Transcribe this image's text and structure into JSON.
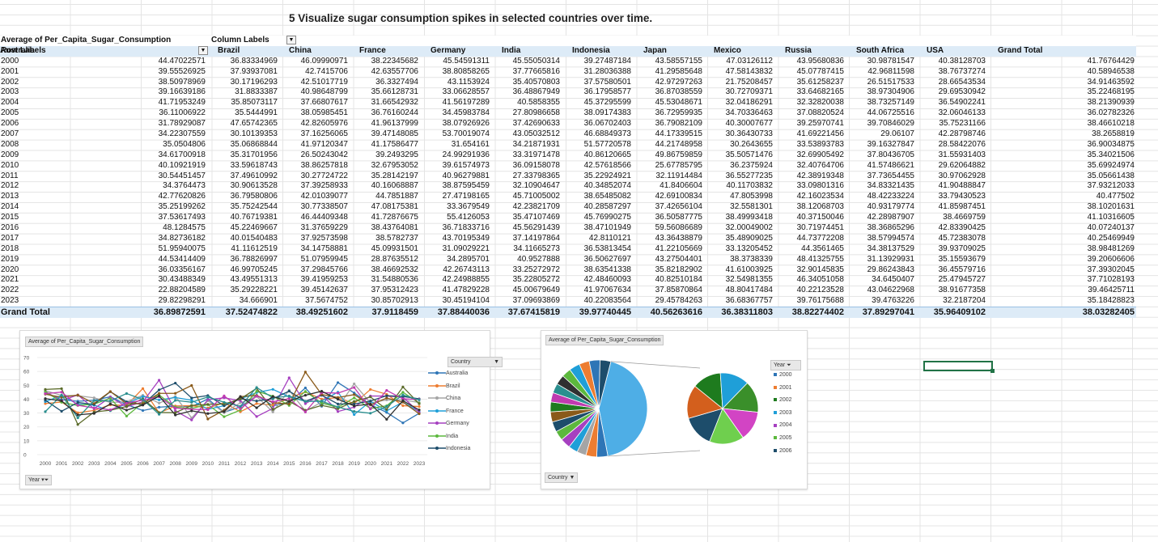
{
  "title": "5 Visualize sugar consumption spikes in selected countries over time.",
  "pivot": {
    "values_label": "Average of Per_Capita_Sugar_Consumption",
    "column_labels": "Column Labels",
    "row_labels": "Row Labels",
    "columns": [
      "Australia",
      "Brazil",
      "China",
      "France",
      "Germany",
      "India",
      "Indonesia",
      "Japan",
      "Mexico",
      "Russia",
      "South Africa",
      "USA",
      "Grand Total"
    ],
    "rows": [
      {
        "year": "2000",
        "values": [
          "44.47022571",
          "36.83334969",
          "46.09990971",
          "38.22345682",
          "45.54591311",
          "45.55050314",
          "39.27487184",
          "43.58557155",
          "47.03126112",
          "43.95680836",
          "30.98781547",
          "40.38128703",
          "41.76764429"
        ]
      },
      {
        "year": "2001",
        "values": [
          "39.55526925",
          "37.93937081",
          "42.7415706",
          "42.63557706",
          "38.80858265",
          "37.77665816",
          "31.28036388",
          "41.29585648",
          "47.58143832",
          "45.07787415",
          "42.96811598",
          "38.76737274",
          "40.58946538"
        ]
      },
      {
        "year": "2002",
        "values": [
          "38.50978969",
          "30.17196293",
          "42.51017719",
          "36.3327494",
          "43.1153924",
          "35.40570803",
          "37.57580501",
          "42.97297263",
          "21.75208457",
          "35.61258237",
          "26.51517533",
          "28.66543534",
          "34.91463592"
        ]
      },
      {
        "year": "2003",
        "values": [
          "39.16639186",
          "31.8833387",
          "40.98648799",
          "35.66128731",
          "33.06628557",
          "36.48867949",
          "36.17958577",
          "36.87038559",
          "30.72709371",
          "33.64682165",
          "38.97304906",
          "29.69530942",
          "35.22468195"
        ]
      },
      {
        "year": "2004",
        "values": [
          "41.71953249",
          "35.85073117",
          "37.66807617",
          "31.66542932",
          "41.56197289",
          "40.5858355",
          "45.37295599",
          "45.53048671",
          "32.04186291",
          "32.32820038",
          "38.73257149",
          "36.54902241",
          "38.21390939"
        ]
      },
      {
        "year": "2005",
        "values": [
          "36.11006922",
          "35.5444991",
          "38.05985451",
          "36.76160244",
          "34.45983784",
          "27.80986658",
          "38.09174383",
          "36.72959935",
          "34.70336463",
          "37.08820524",
          "44.06725516",
          "32.06046133",
          "36.02782326"
        ]
      },
      {
        "year": "2006",
        "values": [
          "31.78929087",
          "47.65742365",
          "42.82605976",
          "41.96137999",
          "38.07926926",
          "37.42690633",
          "36.06702403",
          "36.79082109",
          "40.30007677",
          "39.25970741",
          "39.70846029",
          "35.75231166",
          "38.46610218"
        ]
      },
      {
        "year": "2007",
        "values": [
          "34.22307559",
          "30.10139353",
          "37.16256065",
          "39.47148085",
          "53.70019074",
          "43.05032512",
          "46.68849373",
          "44.17339515",
          "30.36430733",
          "41.69221456",
          "29.06107",
          "42.28798746",
          "38.2658819"
        ]
      },
      {
        "year": "2008",
        "values": [
          "35.0504806",
          "35.06868844",
          "41.97120347",
          "41.17586477",
          "31.654161",
          "34.21871931",
          "51.57720578",
          "44.21748958",
          "30.2643655",
          "33.53893783",
          "39.16327847",
          "28.58422076",
          "36.90034875"
        ]
      },
      {
        "year": "2009",
        "values": [
          "34.61700918",
          "35.31701956",
          "26.50243042",
          "39.2493295",
          "24.99291936",
          "33.31971478",
          "40.86120665",
          "49.86759859",
          "35.50571476",
          "32.69905492",
          "37.80436705",
          "31.55931403",
          "35.34021506"
        ]
      },
      {
        "year": "2010",
        "values": [
          "40.10921919",
          "33.59618743",
          "38.86257818",
          "32.67953052",
          "39.61574973",
          "36.09158078",
          "42.57618566",
          "25.67785795",
          "36.2375924",
          "32.40764706",
          "41.57486621",
          "29.62064882",
          "35.69924974"
        ]
      },
      {
        "year": "2011",
        "values": [
          "30.54451457",
          "37.49610992",
          "30.27724722",
          "35.28142197",
          "40.96279881",
          "27.33798365",
          "35.22924921",
          "32.11914484",
          "36.55277235",
          "42.38919348",
          "37.73654455",
          "30.97062928",
          "35.05661438"
        ]
      },
      {
        "year": "2012",
        "values": [
          "34.3764473",
          "30.90613528",
          "37.39258933",
          "40.16068887",
          "38.87595459",
          "32.10904647",
          "40.34852074",
          "41.8406604",
          "40.11703832",
          "33.09801316",
          "34.83321435",
          "41.90488847",
          "37.93212033"
        ]
      },
      {
        "year": "2013",
        "values": [
          "42.77620826",
          "36.79580806",
          "42.01039077",
          "44.7851887",
          "27.47198165",
          "45.71005002",
          "38.65485082",
          "42.69100834",
          "47.8053998",
          "42.16023534",
          "48.42233224",
          "33.79430523",
          "40.477502"
        ]
      },
      {
        "year": "2014",
        "values": [
          "35.25199262",
          "35.75242544",
          "30.77338507",
          "47.08175381",
          "33.3679549",
          "42.23821709",
          "40.28587297",
          "37.42656104",
          "32.5581301",
          "38.12068703",
          "40.93179774",
          "41.85987451",
          "38.10201631"
        ]
      },
      {
        "year": "2015",
        "values": [
          "37.53617493",
          "40.76719381",
          "46.44409348",
          "41.72876675",
          "55.4126053",
          "35.47107469",
          "45.76990275",
          "36.50587775",
          "38.49993418",
          "40.37150046",
          "42.28987907",
          "38.4669759",
          "41.10316605"
        ]
      },
      {
        "year": "2016",
        "values": [
          "48.1284575",
          "45.22469667",
          "31.37659229",
          "38.43764081",
          "36.71833716",
          "45.56291439",
          "38.47101949",
          "59.56086689",
          "32.00049002",
          "30.71974451",
          "38.36865296",
          "42.83390425",
          "40.07240137"
        ]
      },
      {
        "year": "2017",
        "values": [
          "34.82736182",
          "40.01540483",
          "37.92573598",
          "38.5782737",
          "43.70195349",
          "37.14197864",
          "42.8110121",
          "43.36438879",
          "35.48909025",
          "44.73772208",
          "38.57994574",
          "45.72383078",
          "40.25469949"
        ]
      },
      {
        "year": "2018",
        "values": [
          "51.95940075",
          "41.11612519",
          "34.14758881",
          "45.09931501",
          "31.09029221",
          "34.11665273",
          "36.53813454",
          "41.22105669",
          "33.13205452",
          "44.3561465",
          "34.38137529",
          "39.93709025",
          "38.98481269"
        ]
      },
      {
        "year": "2019",
        "values": [
          "44.53414409",
          "36.78826997",
          "51.07959945",
          "28.87635512",
          "34.2895701",
          "40.9527888",
          "36.50627697",
          "43.27504401",
          "38.3738339",
          "48.41325755",
          "31.13929931",
          "35.15593679",
          "39.20606606"
        ]
      },
      {
        "year": "2020",
        "values": [
          "36.03356167",
          "46.99705245",
          "37.29845766",
          "38.46692532",
          "42.26743113",
          "33.25272972",
          "38.63541338",
          "35.82182902",
          "41.61003925",
          "32.90145835",
          "29.86243843",
          "36.45579716",
          "37.39302045"
        ]
      },
      {
        "year": "2021",
        "values": [
          "30.43488349",
          "43.49551313",
          "39.41959253",
          "31.54880536",
          "42.24988855",
          "35.22805272",
          "42.48460093",
          "40.82510184",
          "32.54981355",
          "46.34051058",
          "34.6450407",
          "25.47945727",
          "37.71028193"
        ]
      },
      {
        "year": "2022",
        "values": [
          "22.88204589",
          "35.29228221",
          "39.45142637",
          "37.95312423",
          "41.47829228",
          "45.00679649",
          "41.97067634",
          "37.85870864",
          "48.80417484",
          "40.22123528",
          "43.04622968",
          "38.91677358",
          "39.46425711"
        ]
      },
      {
        "year": "2023",
        "values": [
          "29.82298291",
          "34.666901",
          "37.5674752",
          "30.85702913",
          "30.45194104",
          "37.09693869",
          "40.22083564",
          "29.45784263",
          "36.68367757",
          "39.76175688",
          "39.4763226",
          "32.2187204",
          "35.18428823"
        ]
      }
    ],
    "grand_total": {
      "label": "Grand Total",
      "values": [
        "36.89872591",
        "37.52474822",
        "38.49251602",
        "37.9118459",
        "37.88440036",
        "37.67415819",
        "39.97740445",
        "40.56263616",
        "36.38311803",
        "38.82274402",
        "37.89297041",
        "35.96409102",
        "38.03282405"
      ]
    }
  },
  "line_chart": {
    "title": "Average of Per_Capita_Sugar_Consumption",
    "filter_label": "Year",
    "legend_title": "Country",
    "yticks": [
      "70",
      "60",
      "50",
      "40",
      "30",
      "20",
      "10",
      "0"
    ],
    "legend": [
      {
        "name": "Australia",
        "color": "#2e75b6"
      },
      {
        "name": "Brazil",
        "color": "#ed7d31"
      },
      {
        "name": "China",
        "color": "#a5a5a5"
      },
      {
        "name": "France",
        "color": "#1f9fd8"
      },
      {
        "name": "Germany",
        "color": "#a640c0"
      },
      {
        "name": "India",
        "color": "#5cb83d"
      },
      {
        "name": "Indonesia",
        "color": "#1d4d6b"
      }
    ],
    "extra_colors": [
      "#8a5a1a",
      "#5b6b2a",
      "#c03bb0",
      "#2a8f8f",
      "#303030"
    ]
  },
  "pie_chart": {
    "title": "Average of Per_Capita_Sugar_Consumption",
    "filter_label": "Country",
    "legend_title": "Year",
    "legend": [
      {
        "name": "2000",
        "color": "#2e75b6"
      },
      {
        "name": "2001",
        "color": "#ed7d31"
      },
      {
        "name": "2002",
        "color": "#1e7b1e"
      },
      {
        "name": "2003",
        "color": "#1f9fd8"
      },
      {
        "name": "2004",
        "color": "#a640c0"
      },
      {
        "name": "2005",
        "color": "#5cb83d"
      },
      {
        "name": "2006",
        "color": "#1d4d6b"
      }
    ]
  },
  "chart_data": [
    {
      "type": "line",
      "title": "Average of Per_Capita_Sugar_Consumption",
      "x": [
        "2000",
        "2001",
        "2002",
        "2003",
        "2004",
        "2005",
        "2006",
        "2007",
        "2008",
        "2009",
        "2010",
        "2011",
        "2012",
        "2013",
        "2014",
        "2015",
        "2016",
        "2017",
        "2018",
        "2019",
        "2020",
        "2021",
        "2022",
        "2023"
      ],
      "ylim": [
        0,
        70
      ],
      "series": [
        {
          "name": "Australia",
          "values": [
            44.47,
            39.56,
            38.51,
            39.17,
            41.72,
            36.11,
            31.79,
            34.22,
            35.05,
            34.62,
            40.11,
            30.54,
            34.38,
            42.78,
            35.25,
            37.54,
            48.13,
            34.83,
            51.96,
            44.53,
            36.03,
            30.43,
            22.88,
            29.82
          ]
        },
        {
          "name": "Brazil",
          "values": [
            36.83,
            37.94,
            30.17,
            31.88,
            35.85,
            35.54,
            47.66,
            30.1,
            35.07,
            35.32,
            33.6,
            37.5,
            30.91,
            36.8,
            35.75,
            40.77,
            45.22,
            40.02,
            41.12,
            36.79,
            47.0,
            43.5,
            35.29,
            34.67
          ]
        },
        {
          "name": "China",
          "values": [
            46.1,
            42.74,
            42.51,
            40.99,
            37.67,
            38.06,
            42.83,
            37.16,
            41.97,
            26.5,
            38.86,
            30.28,
            37.39,
            42.01,
            30.77,
            46.44,
            31.38,
            37.93,
            34.15,
            51.08,
            37.3,
            39.42,
            39.45,
            37.57
          ]
        },
        {
          "name": "France",
          "values": [
            38.22,
            42.64,
            36.33,
            35.66,
            31.67,
            36.76,
            41.96,
            39.47,
            41.18,
            39.25,
            32.68,
            35.28,
            40.16,
            44.79,
            47.08,
            41.73,
            38.44,
            38.58,
            45.1,
            28.88,
            38.47,
            31.55,
            37.95,
            30.86
          ]
        },
        {
          "name": "Germany",
          "values": [
            45.55,
            38.81,
            43.12,
            33.07,
            41.56,
            34.46,
            38.08,
            53.7,
            31.65,
            24.99,
            39.62,
            40.96,
            38.88,
            27.47,
            33.37,
            55.41,
            36.72,
            43.7,
            31.09,
            34.29,
            42.27,
            42.25,
            41.48,
            30.45
          ]
        },
        {
          "name": "India",
          "values": [
            45.55,
            37.78,
            35.41,
            36.49,
            40.59,
            27.81,
            37.43,
            43.05,
            34.22,
            33.32,
            36.09,
            27.34,
            32.11,
            45.71,
            42.24,
            35.47,
            45.56,
            37.14,
            34.12,
            40.95,
            33.25,
            35.23,
            45.01,
            37.1
          ]
        },
        {
          "name": "Indonesia",
          "values": [
            39.27,
            31.28,
            37.58,
            36.18,
            45.37,
            38.09,
            36.07,
            46.69,
            51.58,
            40.86,
            42.58,
            35.23,
            40.35,
            38.65,
            40.29,
            45.77,
            38.47,
            42.81,
            36.54,
            36.51,
            38.64,
            42.48,
            41.97,
            40.22
          ]
        },
        {
          "name": "Japan",
          "values": [
            43.59,
            41.3,
            42.97,
            36.87,
            45.53,
            36.73,
            36.79,
            44.17,
            44.22,
            49.87,
            25.68,
            32.12,
            41.84,
            42.69,
            37.43,
            36.51,
            59.56,
            43.36,
            41.22,
            43.28,
            35.82,
            40.83,
            37.86,
            29.46
          ]
        },
        {
          "name": "Mexico",
          "values": [
            47.03,
            47.58,
            21.75,
            30.73,
            32.04,
            34.7,
            40.3,
            30.36,
            30.26,
            35.51,
            36.24,
            36.55,
            40.12,
            47.81,
            32.56,
            38.5,
            32.0,
            35.49,
            33.13,
            38.37,
            41.61,
            32.55,
            48.8,
            36.68
          ]
        },
        {
          "name": "Russia",
          "values": [
            43.96,
            45.08,
            35.61,
            33.65,
            32.33,
            37.09,
            39.26,
            41.69,
            33.54,
            32.7,
            32.41,
            42.39,
            33.1,
            42.16,
            38.12,
            40.37,
            30.72,
            44.74,
            44.36,
            48.41,
            32.9,
            46.34,
            40.22,
            39.76
          ]
        },
        {
          "name": "South Africa",
          "values": [
            30.99,
            42.97,
            26.52,
            38.97,
            38.73,
            44.07,
            39.71,
            29.06,
            39.16,
            37.8,
            41.57,
            37.74,
            34.83,
            48.42,
            40.93,
            42.29,
            38.37,
            38.58,
            34.38,
            31.14,
            29.86,
            34.65,
            43.05,
            39.48
          ]
        },
        {
          "name": "USA",
          "values": [
            40.38,
            38.77,
            28.67,
            29.7,
            36.55,
            32.06,
            35.75,
            42.29,
            28.58,
            31.56,
            29.62,
            30.97,
            41.9,
            33.79,
            41.86,
            38.47,
            42.83,
            45.72,
            39.94,
            35.16,
            36.46,
            25.48,
            38.92,
            32.22
          ]
        }
      ]
    },
    {
      "type": "pie",
      "title": "Average of Per_Capita_Sugar_Consumption",
      "categories": [
        "2000",
        "2001",
        "2002",
        "2003",
        "2004",
        "2005",
        "2006"
      ],
      "values": [
        41.77,
        40.59,
        34.91,
        35.22,
        38.21,
        36.03,
        38.47
      ]
    }
  ]
}
